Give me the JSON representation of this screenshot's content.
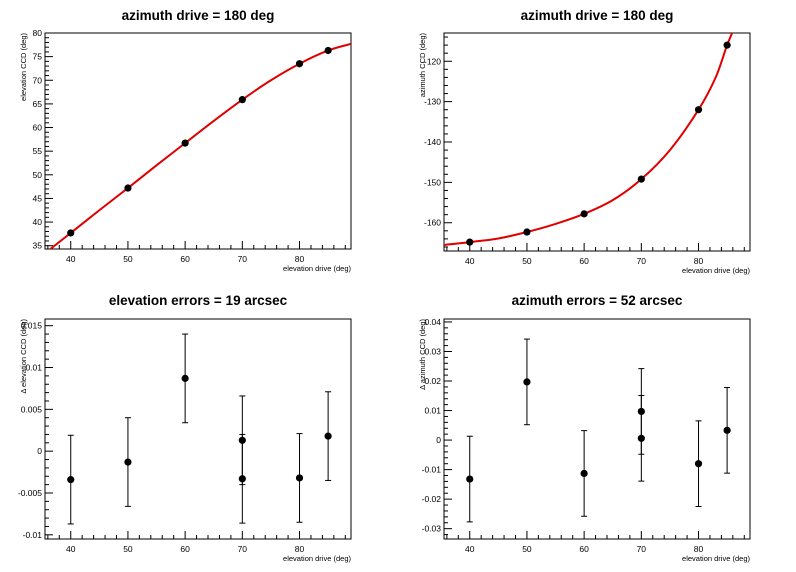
{
  "chart_data": [
    {
      "type": "scatter",
      "title": "azimuth drive = 180 deg",
      "xlabel": "elevation drive (deg)",
      "ylabel": "elevation CCD (deg)",
      "xlim": [
        35.5,
        89
      ],
      "ylim": [
        34.3,
        80
      ],
      "xticks": [
        40,
        50,
        60,
        70,
        80
      ],
      "yticks": [
        35,
        40,
        45,
        50,
        55,
        60,
        65,
        70,
        75,
        80
      ],
      "ytick_labels": [
        "35",
        "40",
        "45",
        "50",
        "55",
        "60",
        "65",
        "70",
        "75",
        "80"
      ],
      "points": [
        {
          "x": 40,
          "y": 37.7
        },
        {
          "x": 50,
          "y": 47.2
        },
        {
          "x": 60,
          "y": 56.7
        },
        {
          "x": 70,
          "y": 65.9
        },
        {
          "x": 80,
          "y": 73.5
        },
        {
          "x": 85,
          "y": 76.3
        }
      ],
      "fit": {
        "color": "#e00000",
        "x": [
          35.5,
          40,
          45,
          50,
          55,
          60,
          65,
          70,
          75,
          80,
          85,
          89
        ],
        "y": [
          33.4,
          37.7,
          42.5,
          47.2,
          52.0,
          56.7,
          61.4,
          65.9,
          70.0,
          73.5,
          76.3,
          77.7
        ]
      },
      "grid": false
    },
    {
      "type": "scatter",
      "title": "azimuth drive = 180 deg",
      "xlabel": "elevation drive (deg)",
      "ylabel": "azimuth CCD (deg)",
      "xlim": [
        35.5,
        89
      ],
      "ylim": [
        -167,
        -113
      ],
      "xticks": [
        40,
        50,
        60,
        70,
        80
      ],
      "yticks": [
        -160,
        -150,
        -140,
        -130,
        -120
      ],
      "ytick_labels": [
        "-160",
        "-150",
        "-140",
        "-130",
        "-120"
      ],
      "points": [
        {
          "x": 40,
          "y": -164.8
        },
        {
          "x": 50,
          "y": -162.3
        },
        {
          "x": 60,
          "y": -157.8
        },
        {
          "x": 70,
          "y": -149.2
        },
        {
          "x": 80,
          "y": -132.0
        },
        {
          "x": 85,
          "y": -116.0
        }
      ],
      "fit": {
        "color": "#e00000",
        "x": [
          35.5,
          40,
          45,
          50,
          55,
          60,
          65,
          70,
          75,
          80,
          83,
          85,
          86.5
        ],
        "y": [
          -165.5,
          -164.8,
          -163.9,
          -162.3,
          -160.3,
          -157.8,
          -154.4,
          -149.2,
          -142.0,
          -132.0,
          -124.0,
          -116.0,
          -111.0
        ]
      },
      "grid": false
    },
    {
      "type": "scatter",
      "title": "elevation errors = 19 arcsec",
      "xlabel": "elevation drive (deg)",
      "ylabel": "Δ elevation CCD (deg)",
      "xlim": [
        35.5,
        89
      ],
      "ylim": [
        -0.0105,
        0.0158
      ],
      "xticks": [
        40,
        50,
        60,
        70,
        80
      ],
      "yticks": [
        -0.01,
        -0.005,
        0,
        0.005,
        0.01,
        0.015
      ],
      "ytick_labels": [
        "-0.01",
        "-0.005",
        "0",
        "0.005",
        "0.01",
        "0.015"
      ],
      "points": [
        {
          "x": 40,
          "y": -0.0034,
          "err": 0.0053
        },
        {
          "x": 50,
          "y": -0.0013,
          "err": 0.0053
        },
        {
          "x": 60,
          "y": 0.0087,
          "err": 0.0053
        },
        {
          "x": 70,
          "y": 0.0013,
          "err": 0.0053
        },
        {
          "x": 70,
          "y": -0.0033,
          "err": 0.0053
        },
        {
          "x": 80,
          "y": -0.0032,
          "err": 0.0053
        },
        {
          "x": 85,
          "y": 0.0018,
          "err": 0.0053
        }
      ],
      "grid": false
    },
    {
      "type": "scatter",
      "title": "azimuth errors = 52 arcsec",
      "xlabel": "elevation drive (deg)",
      "ylabel": "Δ azimuth CCD (deg)",
      "xlim": [
        35.5,
        89
      ],
      "ylim": [
        -0.0335,
        0.041
      ],
      "xticks": [
        40,
        50,
        60,
        70,
        80
      ],
      "yticks": [
        -0.03,
        -0.02,
        -0.01,
        0,
        0.01,
        0.02,
        0.03,
        0.04
      ],
      "ytick_labels": [
        "-0.03",
        "-0.02",
        "-0.01",
        "0",
        "0.01",
        "0.02",
        "0.03",
        "0.04"
      ],
      "points": [
        {
          "x": 40,
          "y": -0.0132,
          "err": 0.0145
        },
        {
          "x": 50,
          "y": 0.0197,
          "err": 0.0145
        },
        {
          "x": 60,
          "y": -0.0113,
          "err": 0.0145
        },
        {
          "x": 70,
          "y": 0.0097,
          "err": 0.0145
        },
        {
          "x": 70,
          "y": 0.0006,
          "err": 0.0145
        },
        {
          "x": 80,
          "y": -0.008,
          "err": 0.0145
        },
        {
          "x": 85,
          "y": 0.0033,
          "err": 0.0145
        }
      ],
      "grid": false
    }
  ]
}
